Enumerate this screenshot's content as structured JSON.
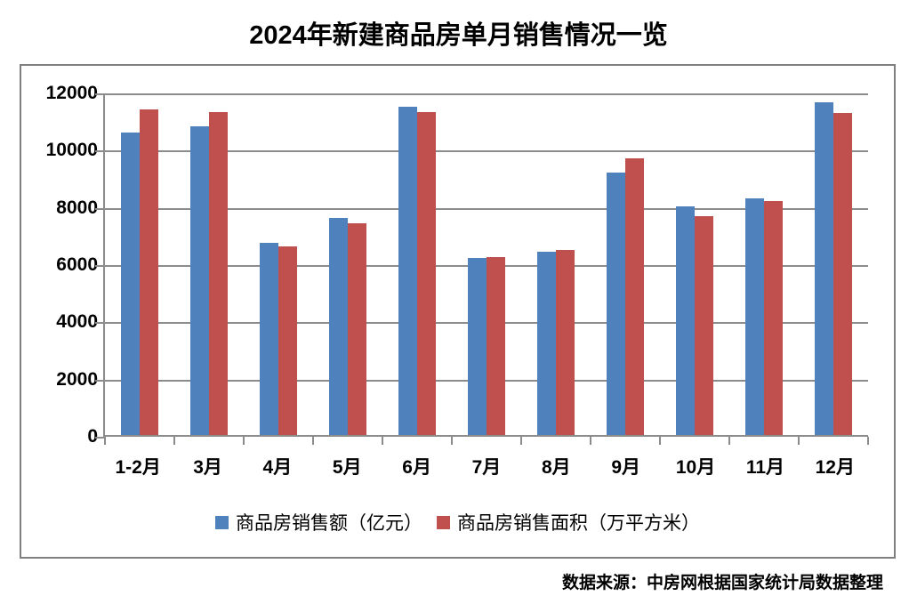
{
  "title": "2024年新建商品房单月销售情况一览",
  "source_note": "数据来源：中房网根据国家统计局数据整理",
  "colors": {
    "series_sales": "#4F81BD",
    "series_area": "#C0504D",
    "gridline": "#8C8C8C",
    "chart_border": "#7F7F7F",
    "text": "#000000",
    "background": "#FFFFFF"
  },
  "chart_data": {
    "type": "bar",
    "title": "2024年新建商品房单月销售情况一览",
    "categories": [
      "1-2月",
      "3月",
      "4月",
      "5月",
      "6月",
      "7月",
      "8月",
      "9月",
      "10月",
      "11月",
      "12月"
    ],
    "series": [
      {
        "name": "商品房销售额（亿元）",
        "color": "#4F81BD",
        "values": [
          10566,
          10789,
          6712,
          7598,
          11468,
          6197,
          6393,
          9157,
          7975,
          8270,
          11625
        ]
      },
      {
        "name": "商品房销售面积（万平方米）",
        "color": "#C0504D",
        "values": [
          11369,
          11299,
          6584,
          7390,
          11274,
          6233,
          6453,
          9682,
          7646,
          8188,
          11267
        ]
      }
    ],
    "xlabel": "",
    "ylabel": "",
    "ylim": [
      0,
      12000
    ],
    "yticks": [
      0,
      2000,
      4000,
      6000,
      8000,
      10000,
      12000
    ],
    "grid": true,
    "legend_position": "bottom",
    "source": "数据来源：中房网根据国家统计局数据整理"
  }
}
